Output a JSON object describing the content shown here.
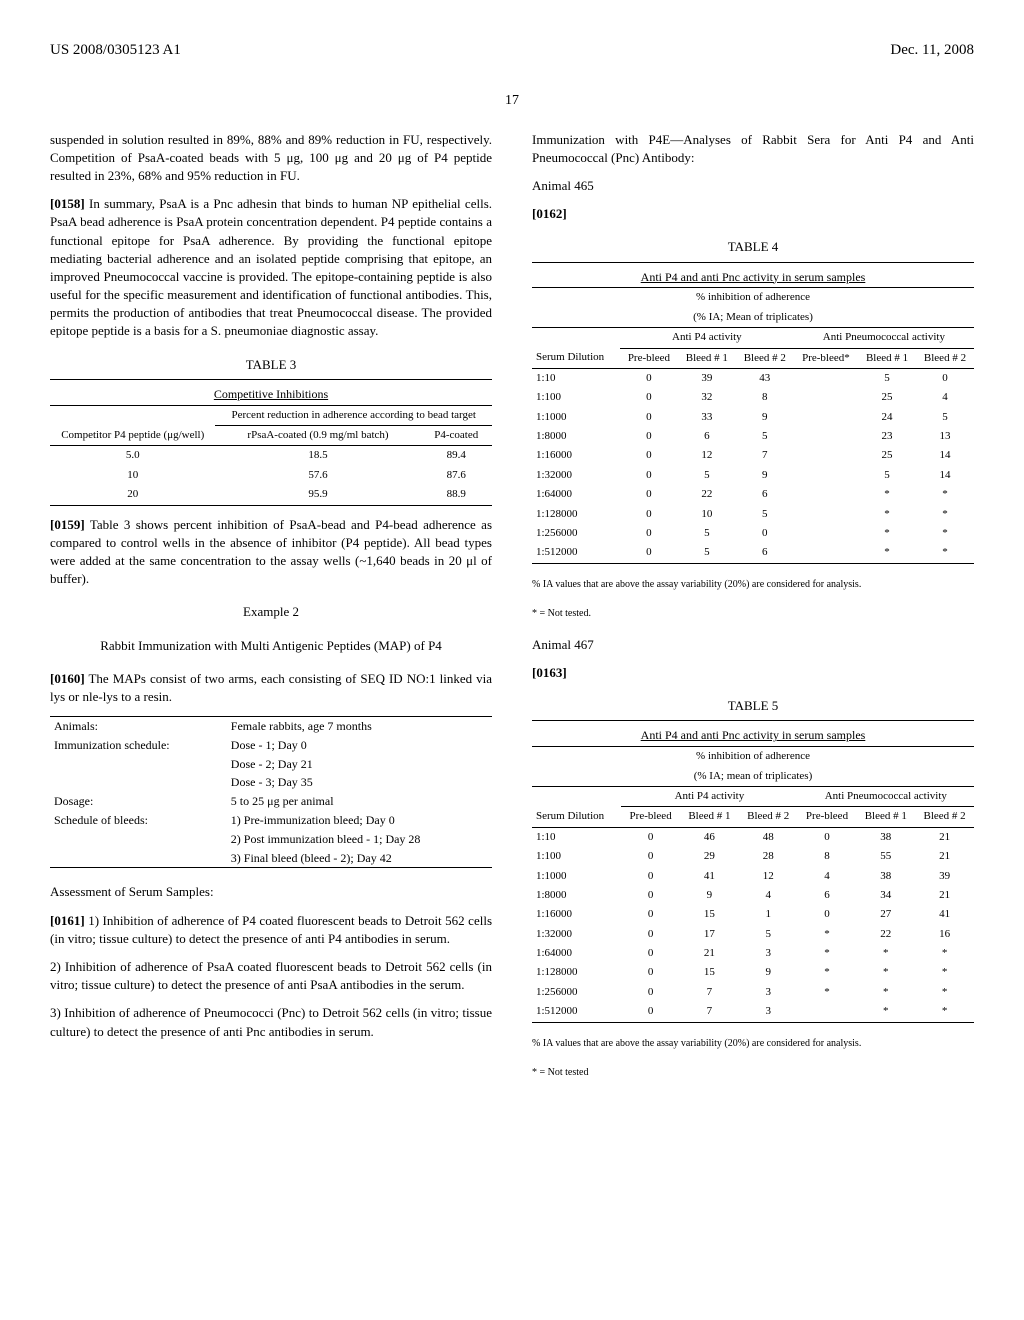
{
  "header": {
    "left": "US 2008/0305123 A1",
    "right": "Dec. 11, 2008"
  },
  "page_num": "17",
  "col1": {
    "p1": "suspended in solution resulted in 89%, 88% and 89% reduction in FU, respectively. Competition of PsaA-coated beads with 5 μg, 100 μg and 20 μg of P4 peptide resulted in 23%, 68% and 95% reduction in FU.",
    "p2_num": "[0158]",
    "p2": "In summary, PsaA is a Pnc adhesin that binds to human NP epithelial cells. PsaA bead adherence is PsaA protein concentration dependent. P4 peptide contains a functional epitope for PsaA adherence. By providing the functional epitope mediating bacterial adherence and an isolated peptide comprising that epitope, an improved Pneumococcal vaccine is provided. The epitope-containing peptide is also useful for the specific measurement and identification of functional antibodies. This, permits the production of antibodies that treat Pneumococcal disease. The provided epitope peptide is a basis for a S. pneumoniae diagnostic assay.",
    "t3": {
      "title": "TABLE 3",
      "caption": "Competitive Inhibitions",
      "subhead": "Percent reduction in adherence according to bead target",
      "h1": "Competitor P4 peptide (μg/well)",
      "h2": "rPsaA-coated (0.9 mg/ml batch)",
      "h3": "P4-coated",
      "rows": [
        [
          "5.0",
          "18.5",
          "89.4"
        ],
        [
          "10",
          "57.6",
          "87.6"
        ],
        [
          "20",
          "95.9",
          "88.9"
        ]
      ]
    },
    "p3_num": "[0159]",
    "p3": "Table 3 shows percent inhibition of PsaA-bead and P4-bead adherence as compared to control wells in the absence of inhibitor (P4 peptide). All bead types were added at the same concentration to the assay wells (~1,640 beads in 20 μl of buffer).",
    "ex_title": "Example 2",
    "ex_sub": "Rabbit Immunization with Multi Antigenic Peptides (MAP) of P4",
    "p4_num": "[0160]",
    "p4": "The MAPs consist of two arms, each consisting of SEQ ID NO:1 linked via lys or nle-lys to a resin.",
    "defs": [
      [
        "Animals:",
        "Female rabbits, age 7 months"
      ],
      [
        "Immunization schedule:",
        "Dose - 1; Day 0"
      ],
      [
        "",
        "Dose - 2; Day 21"
      ],
      [
        "",
        "Dose - 3; Day 35"
      ],
      [
        "Dosage:",
        "5 to 25 μg per animal"
      ],
      [
        "Schedule of bleeds:",
        "1) Pre-immunization bleed; Day 0"
      ],
      [
        "",
        "2) Post immunization bleed - 1; Day 28"
      ],
      [
        "",
        "3) Final bleed (bleed - 2); Day 42"
      ]
    ],
    "assess_head": "Assessment of Serum Samples:",
    "p5_num": "[0161]",
    "p5": "1) Inhibition of adherence of P4 coated fluorescent beads to Detroit 562 cells (in vitro; tissue culture) to detect the presence of anti P4 antibodies in serum.",
    "p6": "2) Inhibition of adherence of PsaA coated fluorescent beads to Detroit 562 cells (in vitro; tissue culture) to detect the presence of anti PsaA antibodies in the serum.",
    "p7": "3) Inhibition of adherence of Pneumococci (Pnc) to Detroit 562 cells (in vitro; tissue culture) to detect the presence of anti Pnc antibodies in serum."
  },
  "col2": {
    "p1": "Immunization with P4E—Analyses of Rabbit Sera for Anti P4 and Anti Pneumococcal (Pnc) Antibody:",
    "a465": "Animal 465",
    "p2_num": "[0162]",
    "t4": {
      "title": "TABLE 4",
      "caption": "Anti P4 and anti Pnc activity in serum samples",
      "sub1": "% inhibition of adherence",
      "sub2": "(% IA; Mean of triplicates)",
      "g1": "Anti P4 activity",
      "g2": "Anti Pneumococcal activity",
      "h0": "Serum Dilution",
      "h1": "Pre-bleed",
      "h2": "Bleed # 1",
      "h3": "Bleed # 2",
      "h4": "Pre-bleed*",
      "h5": "Bleed # 1",
      "h6": "Bleed # 2",
      "rows": [
        [
          "1:10",
          "0",
          "39",
          "43",
          "",
          "5",
          "0"
        ],
        [
          "1:100",
          "0",
          "32",
          "8",
          "",
          "25",
          "4"
        ],
        [
          "1:1000",
          "0",
          "33",
          "9",
          "",
          "24",
          "5"
        ],
        [
          "1:8000",
          "0",
          "6",
          "5",
          "",
          "23",
          "13"
        ],
        [
          "1:16000",
          "0",
          "12",
          "7",
          "",
          "25",
          "14"
        ],
        [
          "1:32000",
          "0",
          "5",
          "9",
          "",
          "5",
          "14"
        ],
        [
          "1:64000",
          "0",
          "22",
          "6",
          "",
          "*",
          "*"
        ],
        [
          "1:128000",
          "0",
          "10",
          "5",
          "",
          "*",
          "*"
        ],
        [
          "1:256000",
          "0",
          "5",
          "0",
          "",
          "*",
          "*"
        ],
        [
          "1:512000",
          "0",
          "5",
          "6",
          "",
          "*",
          "*"
        ]
      ],
      "foot1": "% IA values that are above the assay variability (20%) are considered for analysis.",
      "foot2": "* = Not tested."
    },
    "a467": "Animal 467",
    "p3_num": "[0163]",
    "t5": {
      "title": "TABLE 5",
      "caption": "Anti P4 and anti Pnc activity in serum samples",
      "sub1": "% inhibition of adherence",
      "sub2": "(% IA; mean of triplicates)",
      "g1": "Anti P4 activity",
      "g2": "Anti Pneumococcal activity",
      "h0": "Serum Dilution",
      "h1": "Pre-bleed",
      "h2": "Bleed # 1",
      "h3": "Bleed # 2",
      "h4": "Pre-bleed",
      "h5": "Bleed # 1",
      "h6": "Bleed # 2",
      "rows": [
        [
          "1:10",
          "0",
          "46",
          "48",
          "0",
          "38",
          "21"
        ],
        [
          "1:100",
          "0",
          "29",
          "28",
          "8",
          "55",
          "21"
        ],
        [
          "1:1000",
          "0",
          "41",
          "12",
          "4",
          "38",
          "39"
        ],
        [
          "1:8000",
          "0",
          "9",
          "4",
          "6",
          "34",
          "21"
        ],
        [
          "1:16000",
          "0",
          "15",
          "1",
          "0",
          "27",
          "41"
        ],
        [
          "1:32000",
          "0",
          "17",
          "5",
          "*",
          "22",
          "16"
        ],
        [
          "1:64000",
          "0",
          "21",
          "3",
          "*",
          "*",
          "*"
        ],
        [
          "1:128000",
          "0",
          "15",
          "9",
          "*",
          "*",
          "*"
        ],
        [
          "1:256000",
          "0",
          "7",
          "3",
          "*",
          "*",
          "*"
        ],
        [
          "1:512000",
          "0",
          "7",
          "3",
          "",
          "*",
          "*"
        ]
      ],
      "foot1": "% IA values that are above the assay variability (20%) are considered for analysis.",
      "foot2": "* = Not tested"
    }
  }
}
